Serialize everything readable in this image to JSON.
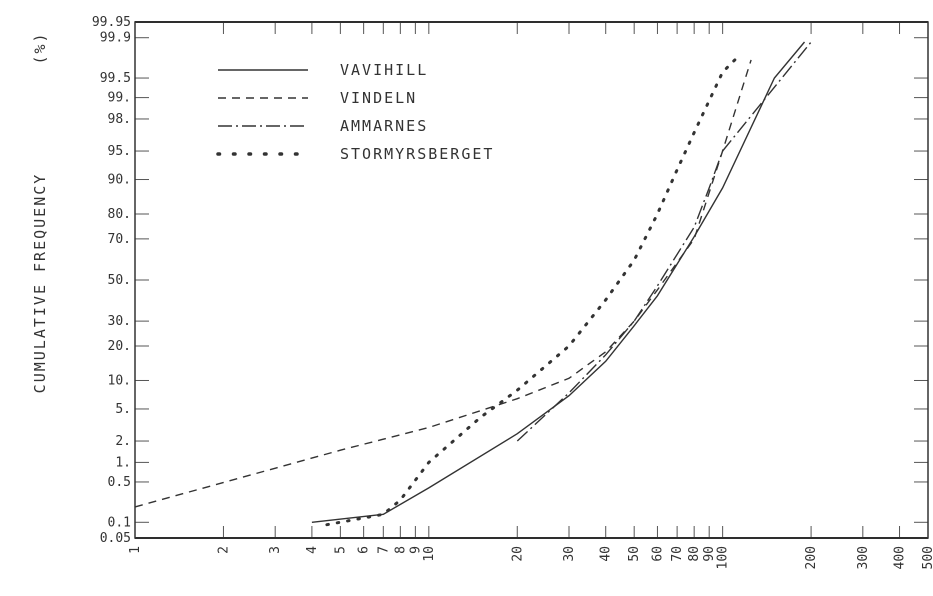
{
  "chart_data": {
    "type": "line",
    "title": "",
    "xlabel": "",
    "ylabel": "CUMULATIVE FREQUENCY",
    "ylabel_unit": "(%)",
    "x_scale": "log",
    "y_scale": "probability",
    "xlim": [
      1,
      500
    ],
    "ylim": [
      0.05,
      99.95
    ],
    "x_tick_labels": [
      "1",
      "2",
      "3",
      "4",
      "5",
      "6",
      "7",
      "8",
      "9",
      "10",
      "20",
      "30",
      "40",
      "50",
      "60",
      "70",
      "80",
      "90",
      "100",
      "200",
      "300",
      "400",
      "500"
    ],
    "y_tick_labels": [
      "0.05",
      "0.1",
      "0.5",
      "1.",
      "2.",
      "5.",
      "10.",
      "20.",
      "30.",
      "50.",
      "70.",
      "80.",
      "90.",
      "95.",
      "98.",
      "99.",
      "99.5",
      "99.9",
      "99.95"
    ],
    "legend_position": "top-left",
    "series": [
      {
        "name": "VAVIHILL",
        "style": "solid",
        "x": [
          4,
          7,
          10,
          20,
          30,
          40,
          50,
          60,
          80,
          100,
          150,
          190
        ],
        "y": [
          0.1,
          0.14,
          0.4,
          2.5,
          7,
          15,
          28,
          42,
          71,
          88,
          99.5,
          99.88
        ]
      },
      {
        "name": "VINDELN",
        "style": "dashed",
        "x": [
          1,
          5,
          10,
          20,
          30,
          40,
          50,
          60,
          80,
          100,
          125
        ],
        "y": [
          0.19,
          1.5,
          3,
          6.5,
          10.5,
          18,
          30,
          45,
          70,
          95,
          99.75
        ]
      },
      {
        "name": "AMMARNES",
        "style": "dashdot",
        "x": [
          20,
          30,
          40,
          50,
          60,
          80,
          90,
          100,
          200
        ],
        "y": [
          2,
          7.5,
          17,
          30,
          47,
          75,
          88,
          95,
          99.88
        ]
      },
      {
        "name": "STORMYRSBERGET",
        "style": "dotted",
        "x": [
          4.5,
          6,
          7,
          8,
          10,
          15,
          20,
          30,
          40,
          50,
          60,
          70,
          80,
          100,
          115
        ],
        "y": [
          0.09,
          0.12,
          0.14,
          0.25,
          1,
          4,
          8,
          20,
          40,
          60,
          80,
          92,
          97,
          99.6,
          99.8
        ]
      }
    ]
  }
}
